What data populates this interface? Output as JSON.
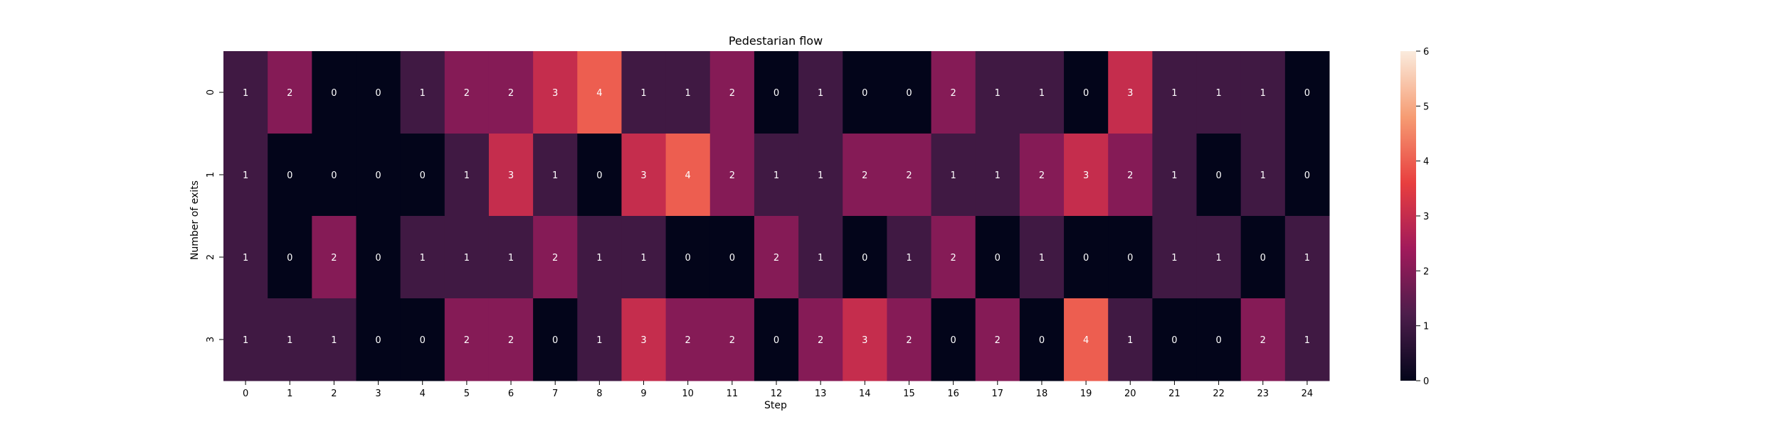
{
  "chart_data": {
    "type": "heatmap",
    "title": "Pedestarian flow",
    "xlabel": "Step",
    "ylabel": "Number of exits",
    "x_categories": [
      "0",
      "1",
      "2",
      "3",
      "4",
      "5",
      "6",
      "7",
      "8",
      "9",
      "10",
      "11",
      "12",
      "13",
      "14",
      "15",
      "16",
      "17",
      "18",
      "19",
      "20",
      "21",
      "22",
      "23",
      "24"
    ],
    "y_categories": [
      "0",
      "1",
      "2",
      "3"
    ],
    "values": [
      [
        1,
        2,
        0,
        0,
        1,
        2,
        2,
        3,
        4,
        1,
        1,
        2,
        0,
        1,
        0,
        0,
        2,
        1,
        1,
        0,
        3,
        1,
        1,
        1,
        0
      ],
      [
        1,
        0,
        0,
        0,
        0,
        1,
        3,
        1,
        0,
        3,
        4,
        2,
        1,
        1,
        2,
        2,
        1,
        1,
        2,
        3,
        2,
        1,
        0,
        1,
        0
      ],
      [
        1,
        0,
        2,
        0,
        1,
        1,
        1,
        2,
        1,
        1,
        0,
        0,
        2,
        1,
        0,
        1,
        2,
        0,
        1,
        0,
        0,
        1,
        1,
        0,
        1
      ],
      [
        1,
        1,
        1,
        0,
        0,
        2,
        2,
        0,
        1,
        3,
        2,
        2,
        0,
        2,
        3,
        2,
        0,
        2,
        0,
        4,
        1,
        0,
        0,
        2,
        1
      ]
    ],
    "colorbar": {
      "range": [
        0,
        6
      ],
      "ticks": [
        "0",
        "1",
        "2",
        "3",
        "4",
        "5",
        "6"
      ],
      "colormap": [
        "#03051a",
        "#4c1d4b",
        "#a11a5b",
        "#e83f3f",
        "#f69c73",
        "#faebdd"
      ]
    },
    "annotations": true,
    "grid": false
  }
}
